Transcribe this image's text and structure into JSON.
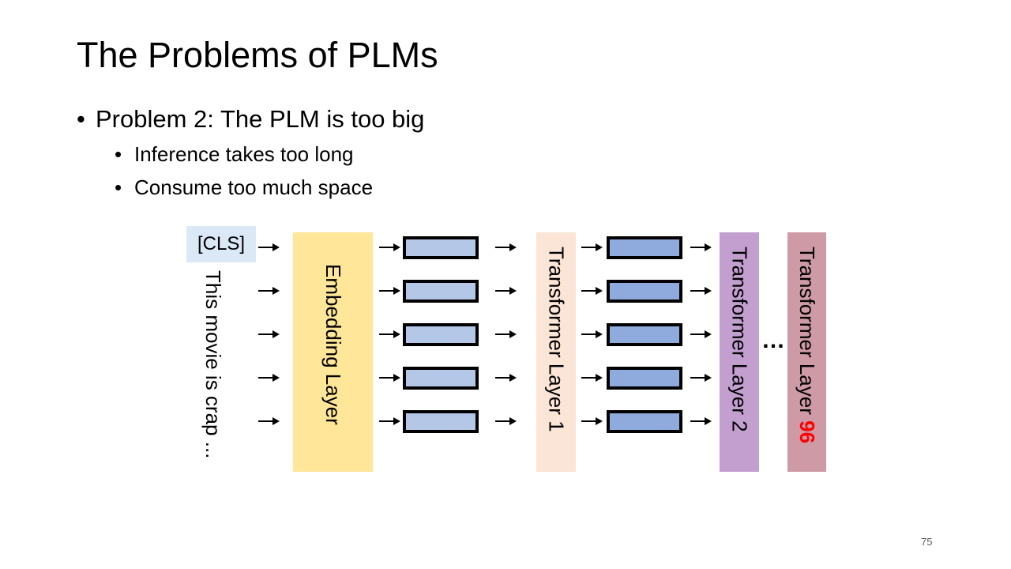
{
  "slide": {
    "title": "The Problems of PLMs",
    "bullets": {
      "main": "Problem 2: The PLM is too big",
      "sub1": "Inference takes too long",
      "sub2": "Consume too much space"
    },
    "bullet_char": "•",
    "page_number": "75"
  },
  "diagram": {
    "cls_token": "[CLS]",
    "input_text": "This movie is crap ...",
    "embedding_layer": "Embedding Layer",
    "transformer_layer_1": "Transformer Layer 1",
    "transformer_layer_2": "Transformer Layer 2",
    "transformer_layer_n_prefix": "Transformer Layer ",
    "transformer_layer_n_number": "96",
    "ellipsis": "…",
    "colors": {
      "cls_bg": "#dbe8f6",
      "embedding": "#ffe699",
      "layer1": "#fbe5d6",
      "layer2": "#c39fcf",
      "layer96": "#cd9aa6",
      "vector_light": "#b4c7e7",
      "vector_mid": "#8faadc",
      "highlight_number": "#ff0000"
    }
  }
}
